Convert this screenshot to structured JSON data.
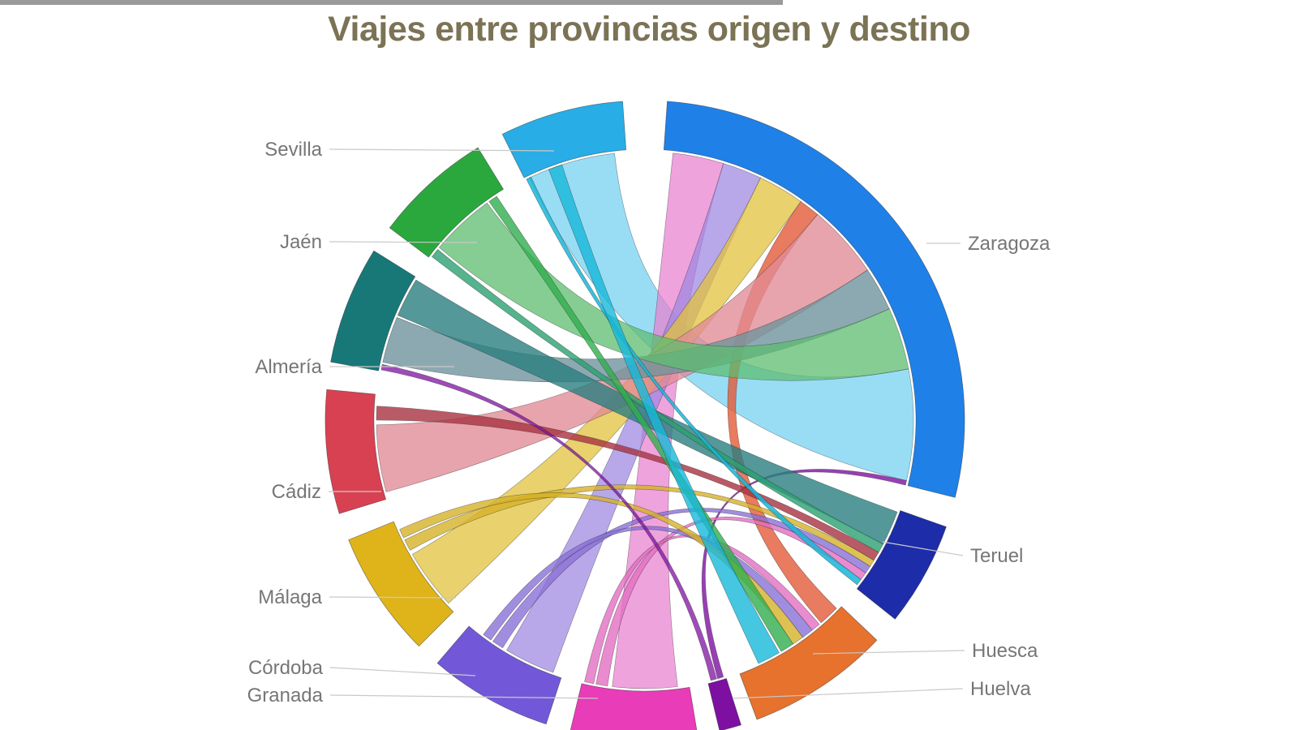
{
  "page": {
    "background": "#ffffff",
    "top_bar_color": "#9a9a9a",
    "label_color": "#767676",
    "leader_line_color": "#c9c9c9"
  },
  "title": {
    "text": "Viajes entre provincias origen y destino",
    "color": "#7b7355"
  },
  "chart_data": {
    "type": "chord",
    "title": "Viajes entre provincias origen y destino",
    "legend_position": "none",
    "grid": false,
    "provinces": [
      {
        "name": "Zaragoza",
        "color": "#1f80e8",
        "start": 4,
        "end": 104
      },
      {
        "name": "Teruel",
        "color": "#1d2ca8",
        "start": 109.5,
        "end": 128.5
      },
      {
        "name": "Huesca",
        "color": "#e6722e",
        "start": 133.5,
        "end": 159.5
      },
      {
        "name": "Huelva",
        "color": "#7d10a0",
        "start": 162.5,
        "end": 166.5
      },
      {
        "name": "Granada",
        "color": "#e83cb8",
        "start": 170.5,
        "end": 193.5
      },
      {
        "name": "Córdoba",
        "color": "#7258d8",
        "start": 198,
        "end": 220.5
      },
      {
        "name": "Málaga",
        "color": "#dfb31a",
        "start": 225,
        "end": 248
      },
      {
        "name": "Cádiz",
        "color": "#d84152",
        "start": 253,
        "end": 275.5
      },
      {
        "name": "Almería",
        "color": "#187878",
        "start": 280.5,
        "end": 302
      },
      {
        "name": "Jaén",
        "color": "#2aa83d",
        "start": 307,
        "end": 328.5
      },
      {
        "name": "Sevilla",
        "color": "#28ade6",
        "start": 333.5,
        "end": 356
      }
    ],
    "flows": [
      {
        "source": "Sevilla",
        "target": "Zaragoza",
        "s": [
          334.5,
          353.5
        ],
        "t": [
          79,
          103
        ],
        "color": "#63cbef",
        "opacity": 0.65
      },
      {
        "source": "Granada",
        "target": "Zaragoza",
        "s": [
          173,
          187
        ],
        "t": [
          6,
          17
        ],
        "color": "#e97fd0",
        "opacity": 0.72
      },
      {
        "source": "Córdoba",
        "target": "Zaragoza",
        "s": [
          200,
          211
        ],
        "t": [
          17,
          25.5
        ],
        "color": "#9d86e2",
        "opacity": 0.72
      },
      {
        "source": "Málaga",
        "target": "Zaragoza",
        "s": [
          227,
          240
        ],
        "t": [
          25.5,
          35.5
        ],
        "color": "#e2c23e",
        "opacity": 0.75
      },
      {
        "source": "Huesca",
        "target": "Zaragoza",
        "s": [
          134.5,
          139
        ],
        "t": [
          35.5,
          40
        ],
        "color": "#e25a38",
        "opacity": 0.8
      },
      {
        "source": "Cádiz",
        "target": "Zaragoza",
        "s": [
          254.5,
          269
        ],
        "t": [
          40,
          56
        ],
        "color": "#e18b95",
        "opacity": 0.78
      },
      {
        "source": "Almería",
        "target": "Zaragoza",
        "s": [
          282.5,
          292.5
        ],
        "t": [
          56,
          65.5
        ],
        "color": "#6f939e",
        "opacity": 0.8
      },
      {
        "source": "Jaén",
        "target": "Zaragoza",
        "s": [
          310,
          324
        ],
        "t": [
          65.5,
          79
        ],
        "color": "#5dbc70",
        "opacity": 0.75
      },
      {
        "source": "Huelva",
        "target": "Zaragoza",
        "s": [
          163,
          164.3
        ],
        "t": [
          103,
          104
        ],
        "color": "#7d10a0",
        "opacity": 0.8
      },
      {
        "source": "Almería",
        "target": "Teruel",
        "s": [
          293,
          301.5
        ],
        "t": [
          110,
          117.5
        ],
        "color": "#2b7e80",
        "opacity": 0.8
      },
      {
        "source": "Jaén",
        "target": "Teruel",
        "s": [
          307.5,
          309.5
        ],
        "t": [
          117.5,
          119.5
        ],
        "color": "#2aa070",
        "opacity": 0.8
      },
      {
        "source": "Cádiz",
        "target": "Teruel",
        "s": [
          270,
          273
        ],
        "t": [
          119.5,
          121.5
        ],
        "color": "#a83240",
        "opacity": 0.8
      },
      {
        "source": "Málaga",
        "target": "Teruel",
        "s": [
          241,
          243.5
        ],
        "t": [
          121.5,
          123
        ],
        "color": "#d6b228",
        "opacity": 0.8
      },
      {
        "source": "Córdoba",
        "target": "Teruel",
        "s": [
          212,
          214.5
        ],
        "t": [
          123,
          124.7
        ],
        "color": "#8a70d8",
        "opacity": 0.8
      },
      {
        "source": "Granada",
        "target": "Teruel",
        "s": [
          188,
          190.5
        ],
        "t": [
          124.7,
          126.4
        ],
        "color": "#e36ec3",
        "opacity": 0.8
      },
      {
        "source": "Sevilla",
        "target": "Teruel",
        "s": [
          333.8,
          334.9
        ],
        "t": [
          126.4,
          127.8
        ],
        "color": "#18b6d8",
        "opacity": 0.85
      },
      {
        "source": "Granada",
        "target": "Huesca",
        "s": [
          191,
          193
        ],
        "t": [
          139.5,
          141.5
        ],
        "color": "#e36ec3",
        "opacity": 0.8
      },
      {
        "source": "Córdoba",
        "target": "Huesca",
        "s": [
          215,
          217
        ],
        "t": [
          141.5,
          144
        ],
        "color": "#8a70d8",
        "opacity": 0.8
      },
      {
        "source": "Málaga",
        "target": "Huesca",
        "s": [
          244,
          246
        ],
        "t": [
          144,
          146.5
        ],
        "color": "#d6b228",
        "opacity": 0.8
      },
      {
        "source": "Jaén",
        "target": "Huesca",
        "s": [
          324.5,
          326.5
        ],
        "t": [
          146.5,
          149.5
        ],
        "color": "#2fae4e",
        "opacity": 0.8
      },
      {
        "source": "Sevilla",
        "target": "Huesca",
        "s": [
          339,
          342
        ],
        "t": [
          150,
          155
        ],
        "color": "#17b8da",
        "opacity": 0.8
      },
      {
        "source": "Huelva",
        "target": "Almería",
        "s": [
          164.5,
          165.8
        ],
        "t": [
          280.8,
          282
        ],
        "color": "#7d10a0",
        "opacity": 0.75
      }
    ]
  }
}
